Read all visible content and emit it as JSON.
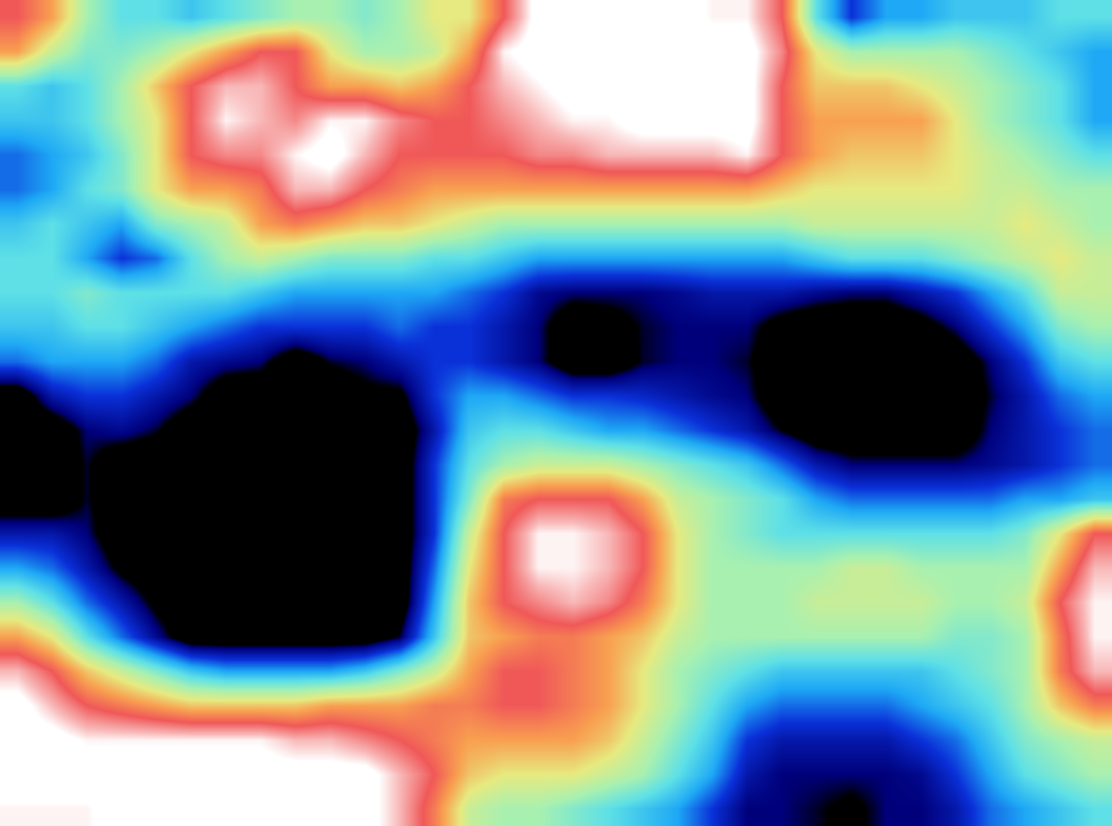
{
  "chart_data": {
    "type": "heatmap",
    "tick_labels": false,
    "zlim": [
      0,
      10
    ],
    "z": [
      [
        8,
        7,
        5,
        4,
        4,
        3.5,
        4,
        4.5,
        5,
        5,
        4.5,
        5,
        6,
        6,
        8,
        10,
        10,
        10,
        10,
        10,
        9.5,
        9.5,
        8,
        4,
        2,
        3,
        3,
        3.5,
        3.5,
        3.5,
        4,
        4
      ],
      [
        7,
        5.5,
        4.5,
        4.5,
        5,
        6,
        7,
        8,
        8,
        6,
        5,
        5,
        5.5,
        7,
        9.5,
        10,
        10,
        10,
        10,
        10,
        10,
        10,
        8.5,
        6,
        5,
        5,
        5,
        5,
        4.5,
        4,
        3.5,
        3
      ],
      [
        4,
        3.5,
        4,
        5,
        6.5,
        8,
        9,
        9,
        8,
        7,
        7,
        6.5,
        7,
        8,
        9,
        9.5,
        10,
        10,
        10,
        10,
        10,
        10,
        8,
        6.5,
        6.5,
        6.5,
        6,
        5.5,
        5,
        4.5,
        4,
        3
      ],
      [
        3.5,
        3.5,
        4,
        5,
        6,
        8,
        9.5,
        9,
        8.5,
        9.5,
        9.5,
        8.5,
        8,
        8,
        8.5,
        9,
        9.5,
        9.5,
        10,
        10,
        10,
        10,
        8,
        7,
        7,
        7,
        7,
        6,
        5,
        4.5,
        4,
        3
      ],
      [
        2.5,
        3,
        3.5,
        4.5,
        6,
        8,
        8.5,
        8.5,
        9.5,
        10,
        9,
        8,
        8,
        8,
        8,
        8.5,
        8.5,
        9,
        9,
        9,
        9,
        9.5,
        8,
        7,
        6.5,
        6.5,
        6.5,
        6,
        5.5,
        5,
        4.5,
        4
      ],
      [
        2.5,
        3,
        4,
        4.5,
        6,
        7,
        7,
        7.5,
        9,
        9,
        8,
        7.5,
        7,
        7,
        7,
        7,
        7,
        7,
        7,
        7,
        7,
        7,
        6.5,
        6,
        6,
        6,
        6,
        6,
        5.5,
        5.5,
        5,
        5
      ],
      [
        3.5,
        4,
        3.5,
        3,
        4.5,
        5,
        5.5,
        7,
        7.5,
        7,
        6.5,
        6.5,
        6,
        5.5,
        5,
        5,
        5,
        5,
        5,
        5,
        5,
        5,
        5,
        5.5,
        5.5,
        5.5,
        5.5,
        5.5,
        5.5,
        6,
        5.5,
        5
      ],
      [
        4,
        4,
        3,
        2,
        2.5,
        4,
        5,
        5.5,
        5,
        4.5,
        4.5,
        4.5,
        4,
        4,
        3.5,
        3,
        3,
        3,
        3,
        3,
        3,
        3,
        3,
        3.5,
        4,
        4,
        4,
        4.5,
        5,
        5.5,
        6,
        5.5
      ],
      [
        4,
        4,
        4.5,
        4,
        4,
        4,
        4,
        3.5,
        3,
        3,
        3,
        3,
        3,
        2.5,
        2,
        1.2,
        1,
        1,
        1,
        1.2,
        1.5,
        1.5,
        1.5,
        1.2,
        1,
        1,
        1.5,
        2,
        3,
        4,
        5.5,
        5.5
      ],
      [
        3.5,
        3.5,
        4,
        4,
        3.5,
        3,
        2.5,
        2,
        2,
        2,
        2,
        2.5,
        2,
        2,
        1.5,
        1,
        0,
        0.3,
        0.8,
        1,
        1,
        1,
        0.3,
        0,
        0,
        0,
        0.3,
        1,
        2,
        3,
        4.5,
        5
      ],
      [
        2.5,
        3,
        3,
        3,
        2.5,
        1.5,
        1.2,
        1,
        0,
        0.8,
        1,
        1.5,
        2,
        2,
        1.5,
        1,
        0,
        0,
        0.8,
        1,
        1,
        0.8,
        0,
        0,
        0,
        0,
        0,
        0,
        1,
        2,
        3.5,
        4
      ],
      [
        0,
        1.5,
        2,
        2,
        1.5,
        1,
        0,
        0,
        0,
        0,
        0.5,
        0.5,
        2,
        3,
        3,
        2.5,
        2,
        2,
        1.8,
        1.5,
        1.2,
        1,
        0,
        0,
        0,
        0,
        0,
        0,
        0.8,
        1.5,
        2.5,
        3
      ],
      [
        0,
        0,
        1,
        1.2,
        0.8,
        0,
        0,
        0,
        0,
        0,
        0,
        0,
        1.5,
        3.5,
        4,
        4,
        3.5,
        3,
        3,
        2.5,
        2,
        1.5,
        0.7,
        0,
        0,
        0,
        0,
        0,
        1,
        1.5,
        2,
        2.5
      ],
      [
        0,
        0,
        0.8,
        0,
        0,
        0,
        0,
        0,
        0,
        0,
        0,
        0,
        2,
        4,
        5,
        5.5,
        5.5,
        5.5,
        5,
        4.5,
        4,
        3.5,
        2.5,
        1.5,
        1,
        1,
        1,
        1,
        1.2,
        1.5,
        2,
        2.5
      ],
      [
        0,
        0,
        0.8,
        0,
        0,
        0,
        0,
        0,
        0,
        0,
        0,
        0,
        2,
        4.5,
        7.5,
        8,
        8,
        8,
        7,
        5.5,
        5,
        4.5,
        4,
        3,
        2.5,
        2.5,
        2.5,
        2.5,
        2.5,
        3,
        3,
        3.5
      ],
      [
        1.5,
        1.5,
        1,
        0,
        0,
        0,
        0,
        0,
        0,
        0,
        0,
        0,
        2,
        5.5,
        8,
        9.5,
        9.5,
        9,
        8,
        6,
        5,
        4.5,
        4,
        4,
        4,
        4,
        4,
        4,
        4,
        4.5,
        6,
        8
      ],
      [
        3,
        2.5,
        1.5,
        0.5,
        0,
        0,
        0,
        0,
        0,
        0,
        0,
        0,
        2.5,
        6,
        8,
        9.5,
        9.5,
        9,
        8,
        6,
        5,
        5,
        5,
        5,
        5.5,
        5.5,
        5,
        5,
        5,
        5,
        7,
        9
      ],
      [
        5,
        4,
        2.5,
        1.5,
        0.5,
        0,
        0,
        0,
        0,
        0,
        0,
        0,
        3,
        6.5,
        8,
        8.5,
        9,
        8.5,
        7.5,
        6,
        5,
        5,
        5,
        5.5,
        5.5,
        5.5,
        5.5,
        5,
        5,
        5.5,
        8,
        9.5
      ],
      [
        7,
        6,
        4,
        2.5,
        1.2,
        0,
        0,
        0,
        0,
        0,
        0,
        0.8,
        3.5,
        6.5,
        7,
        7.5,
        7.5,
        7,
        6.5,
        5.5,
        5,
        5,
        5,
        5,
        5,
        5,
        5,
        4.5,
        4.5,
        5,
        7.5,
        9.5
      ],
      [
        9,
        8,
        6.5,
        5.5,
        4.5,
        3.5,
        3,
        3,
        3,
        3,
        3.5,
        4.5,
        5.5,
        7,
        8,
        8,
        7.5,
        7,
        6,
        5,
        4.5,
        4,
        3.5,
        3.5,
        3.5,
        3.5,
        3.5,
        4,
        4.5,
        5,
        7.5,
        9
      ],
      [
        10,
        9,
        8,
        7.5,
        7,
        6.5,
        6.5,
        6.5,
        6.5,
        7,
        7,
        7,
        7.5,
        7.5,
        8,
        8,
        7.5,
        7,
        6,
        5,
        4,
        3,
        2.5,
        2.5,
        2.5,
        2.5,
        3,
        3.5,
        4,
        5,
        6.5,
        7.5
      ],
      [
        10,
        10,
        9.5,
        9.5,
        9.5,
        9.5,
        9.5,
        9.5,
        9,
        9,
        8.5,
        8,
        7.5,
        7,
        7,
        7,
        7,
        6.5,
        5.5,
        4.5,
        3.5,
        2,
        1.5,
        1.5,
        1.5,
        1.5,
        2,
        2.5,
        3.5,
        4.5,
        5,
        5.5
      ],
      [
        10,
        10,
        10,
        10,
        10,
        10,
        10,
        10,
        10,
        10,
        10,
        9,
        8,
        6.5,
        6,
        6,
        6,
        5.5,
        5,
        4,
        3,
        1.5,
        1,
        1,
        1,
        1,
        1.2,
        2,
        3,
        4,
        4.5,
        5
      ],
      [
        9.5,
        9.5,
        9.5,
        10,
        10,
        10,
        10,
        10,
        10,
        10,
        10,
        9,
        7.5,
        5.5,
        5,
        5,
        4.5,
        4,
        3.5,
        3,
        2,
        1,
        1,
        0.8,
        0.5,
        1,
        1,
        1.5,
        2.5,
        3,
        3.5,
        4
      ]
    ]
  }
}
